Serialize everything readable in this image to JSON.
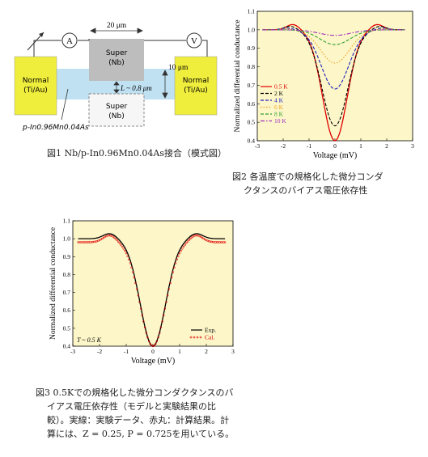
{
  "fig1": {
    "caption": "図1 Nb/p-In0.96Mn0.04As接合（模式図）",
    "labels": {
      "ammeter": "A",
      "voltmeter": "V",
      "width": "20 μm",
      "height": "10 μm",
      "gap": "L ~ 0.8 μm",
      "super_top_1": "Super",
      "super_top_2": "(Nb)",
      "super_bottom_1": "Super",
      "super_bottom_2": "(Nb)",
      "normal_left_1": "Normal",
      "normal_left_2": "(Ti/Au)",
      "normal_right_1": "Normal",
      "normal_right_2": "(Ti/Au)",
      "material": "p-In0.96Mn0.04As"
    }
  },
  "fig2": {
    "caption_line1": "図2 各温度での規格化した微分コンダ",
    "caption_line2": "クタンスのバイアス電圧依存性"
  },
  "fig3": {
    "caption_line1": "図3 0.5Kでの規格化した微分コンダクタンスのバ",
    "caption_line2": "イアス電圧依存性（モデルと実験結果の比",
    "caption_line3": "較）。実線：実験データ、赤丸：計算結果。計",
    "caption_line4": "算には、Z = 0.25, P = 0.725を用いている。"
  },
  "chart_data": [
    {
      "type": "line",
      "xlabel": "Voltage (mV)",
      "ylabel": "Normalized differential conductance",
      "xlim": [
        -3,
        3
      ],
      "ylim": [
        0.4,
        1.1
      ],
      "xticks": [
        -3,
        -2,
        -1,
        0,
        1,
        2,
        3
      ],
      "yticks": [
        0.4,
        0.5,
        0.6,
        0.7,
        0.8,
        0.9,
        1.0,
        1.1
      ],
      "background": "#fcf6c8",
      "legend_position": "left",
      "series": [
        {
          "name": "0.5 K",
          "color": "#e00000",
          "style": "solid",
          "min": 0.4,
          "halfwidth": 0.85,
          "shoulder": 1.03,
          "base": 1.0
        },
        {
          "name": "2 K",
          "color": "#000000",
          "style": "dash",
          "min": 0.48,
          "halfwidth": 0.9,
          "shoulder": 1.02,
          "base": 1.0
        },
        {
          "name": "4 K",
          "color": "#2020c0",
          "style": "dash",
          "min": 0.68,
          "halfwidth": 0.95,
          "shoulder": 1.01,
          "base": 1.0
        },
        {
          "name": "6 K",
          "color": "#f0a020",
          "style": "dot",
          "min": 0.82,
          "halfwidth": 1.0,
          "shoulder": 1.005,
          "base": 1.0
        },
        {
          "name": "8 K",
          "color": "#30a030",
          "style": "dash",
          "min": 0.92,
          "halfwidth": 1.05,
          "shoulder": 1.0,
          "base": 1.0
        },
        {
          "name": "10 K",
          "color": "#a030c0",
          "style": "dashdot",
          "min": 0.97,
          "halfwidth": 1.1,
          "shoulder": 1.0,
          "base": 1.0
        }
      ]
    },
    {
      "type": "line",
      "xlabel": "Voltage (mV)",
      "ylabel": "Normalized differential conductance",
      "xlim": [
        -3,
        3
      ],
      "ylim": [
        0.4,
        1.1
      ],
      "xticks": [
        -3,
        -2,
        -1,
        0,
        1,
        2,
        3
      ],
      "yticks": [
        0.4,
        0.5,
        0.6,
        0.7,
        0.8,
        0.9,
        1.0,
        1.1
      ],
      "background": "#fcf6c8",
      "annotation": "T ~ 0.5 K",
      "legend_position": "bottom-right",
      "series": [
        {
          "name": "Exp.",
          "color": "#000000",
          "style": "solid",
          "min": 0.4,
          "halfwidth": 0.85,
          "shoulder": 1.03,
          "base": 1.0
        },
        {
          "name": "Cal.",
          "color": "#e00000",
          "style": "circles",
          "min": 0.4,
          "halfwidth": 0.85,
          "shoulder": 1.02,
          "base": 0.98
        }
      ]
    }
  ]
}
